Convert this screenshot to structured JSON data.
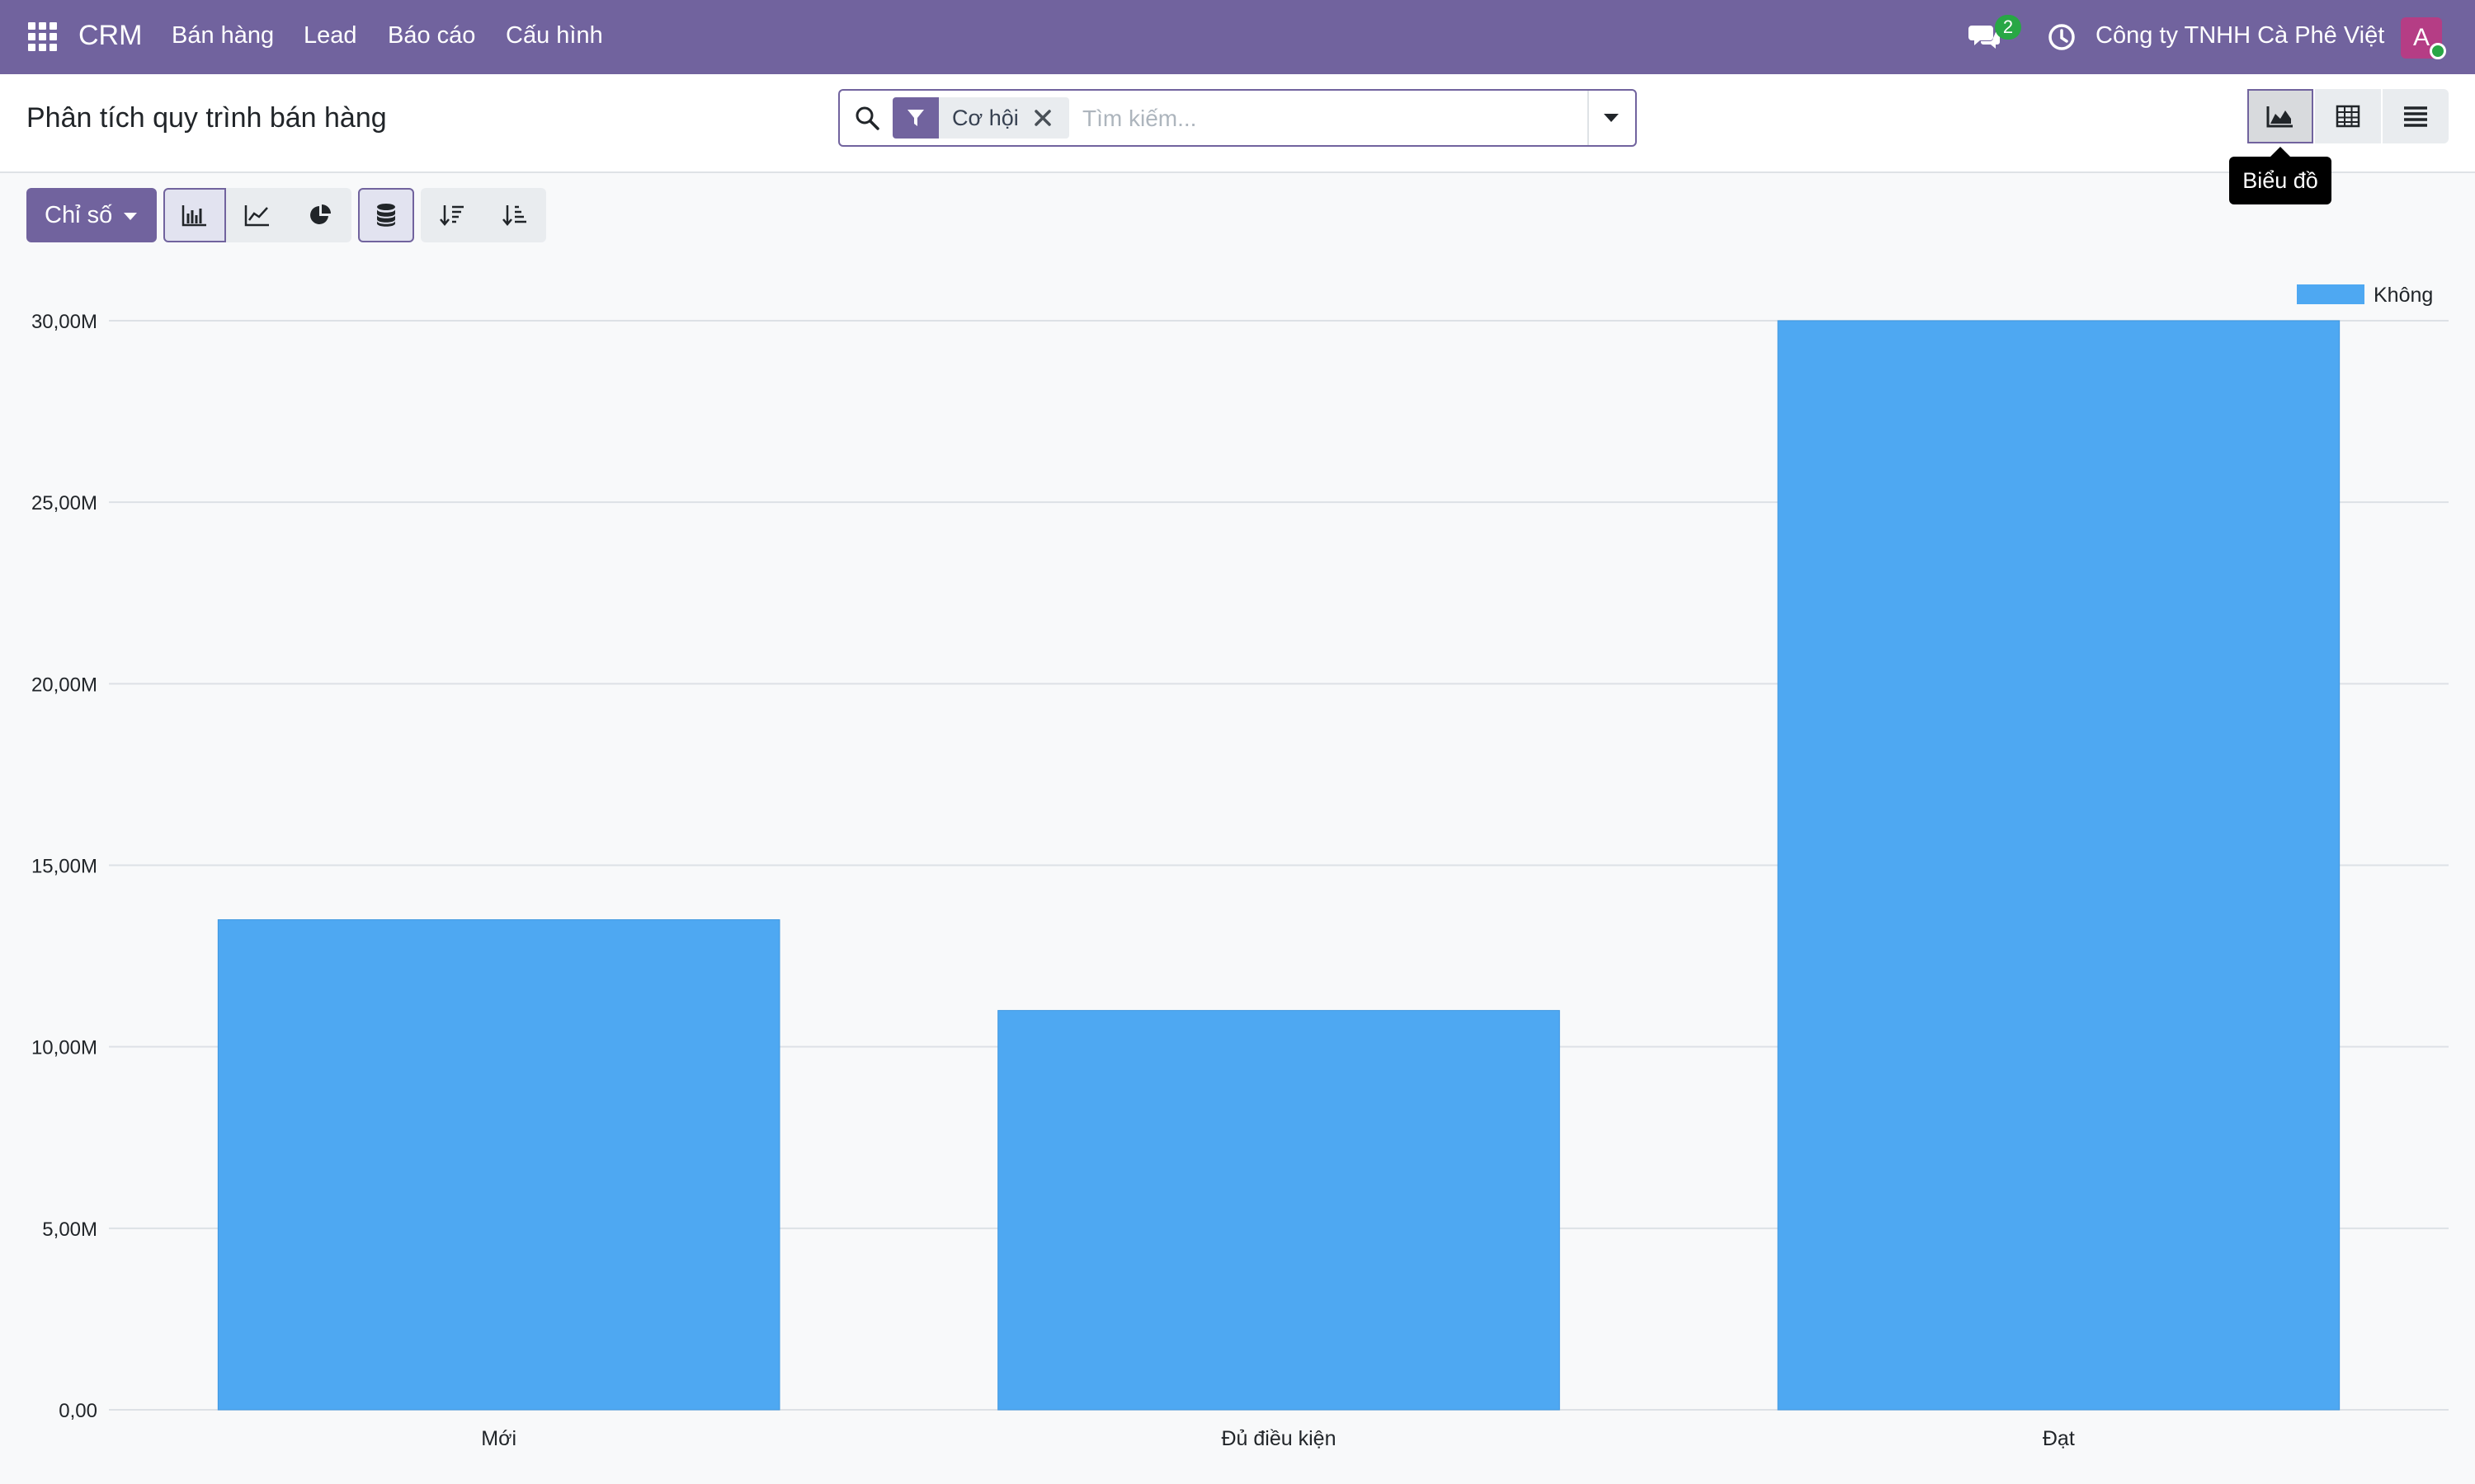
{
  "app": {
    "name": "CRM",
    "menu": [
      "Bán hàng",
      "Lead",
      "Báo cáo",
      "Cấu hình"
    ],
    "message_count": "2",
    "company": "Công ty TNHH Cà Phê Việt",
    "avatar_letter": "A"
  },
  "page": {
    "title": "Phân tích quy trình bán hàng"
  },
  "search": {
    "facet_value": "Cơ hội",
    "placeholder": "Tìm kiếm..."
  },
  "views": {
    "active": "graph",
    "tooltip": "Biểu đồ"
  },
  "toolbar": {
    "measure_label": "Chỉ số"
  },
  "colors": {
    "brand": "#71639e",
    "bar": "#4ea8f2"
  },
  "chart_data": {
    "type": "bar",
    "categories": [
      "Mới",
      "Đủ điều kiện",
      "Đạt"
    ],
    "series": [
      {
        "name": "Không",
        "values": [
          13500000,
          11000000,
          30000000
        ]
      }
    ],
    "ylim": [
      0,
      30000000
    ],
    "yticks": [
      0,
      5000000,
      10000000,
      15000000,
      20000000,
      25000000,
      30000000
    ],
    "ytick_labels": [
      "0,00",
      "5,00M",
      "10,00M",
      "15,00M",
      "20,00M",
      "25,00M",
      "30,00M"
    ],
    "grid": true,
    "legend": "top-right"
  }
}
